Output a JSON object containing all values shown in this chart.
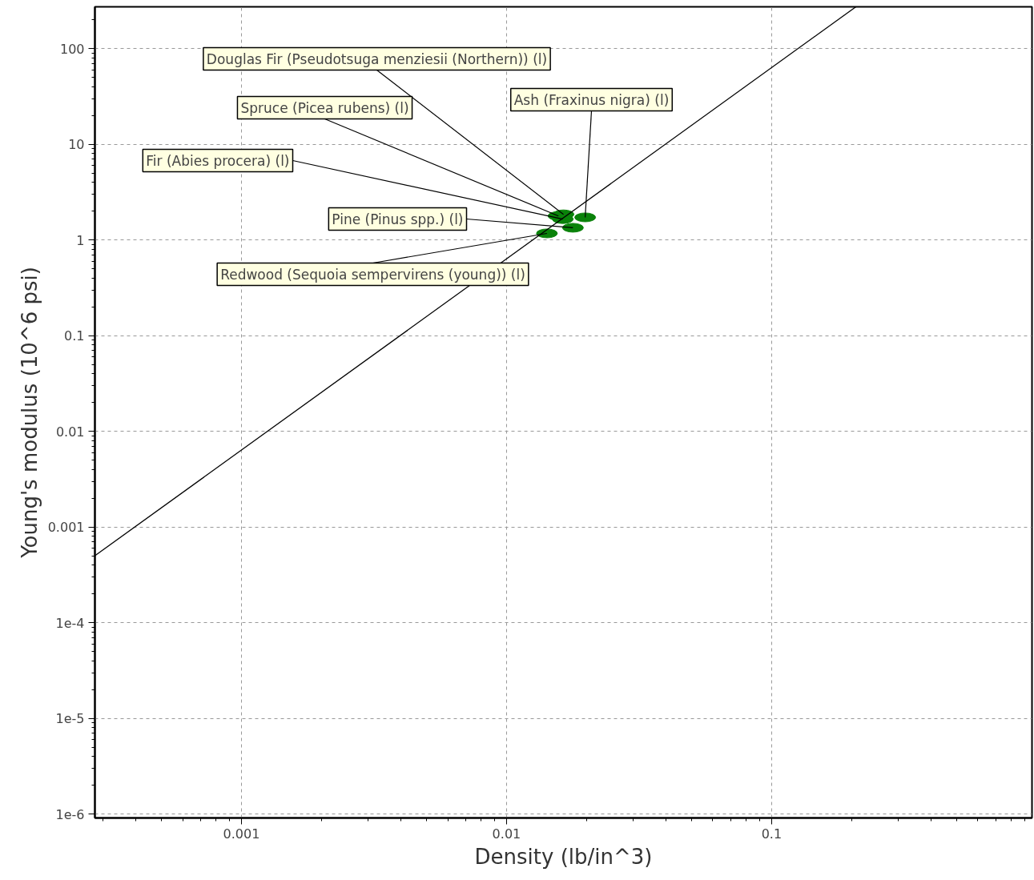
{
  "chart_data": {
    "type": "scatter",
    "xlabel": "Density (lb/in^3)",
    "ylabel": "Young's modulus (10^6 psi)",
    "log": "xy",
    "grid": true,
    "xlim": [
      0.00028,
      0.96
    ],
    "ylim": [
      9.1e-07,
      273
    ],
    "xticks": [
      0.001,
      0.01,
      0.1
    ],
    "yticks": [
      100,
      10,
      1,
      0.1,
      0.01,
      0.001,
      {
        "value": 0.0001,
        "label": "1e-4"
      },
      {
        "value": 1e-05,
        "label": "1e-5"
      },
      {
        "value": 1e-06,
        "label": "1e-6"
      }
    ],
    "series": [
      {
        "marker": "circle",
        "color": "#0a820a",
        "x": [
          0.0164,
          0.0157,
          0.0198,
          0.0163,
          0.0178,
          0.0142
        ],
        "values": [
          1.85,
          1.78,
          1.72,
          1.65,
          1.34,
          1.17
        ]
      },
      {
        "type": "line",
        "marker": "none",
        "color": "#000000",
        "x": [
          0.00028,
          0.208
        ],
        "values": [
          0.0005,
          273
        ]
      }
    ],
    "annotations": [
      {
        "text": "Douglas Fir (Pseudotsuga menziesii (Northern)) (l)",
        "x": 0.0164,
        "y": 1.85
      },
      {
        "text": "Spruce (Picea rubens) (l)",
        "x": 0.0157,
        "y": 1.78
      },
      {
        "text": "Ash (Fraxinus nigra) (l)",
        "x": 0.0198,
        "y": 1.72
      },
      {
        "text": "Fir (Abies procera) (l)",
        "x": 0.0163,
        "y": 1.65
      },
      {
        "text": "Pine (Pinus spp.) (l)",
        "x": 0.0178,
        "y": 1.34
      },
      {
        "text": "Redwood (Sequoia sempervirens (young)) (l)",
        "x": 0.0142,
        "y": 1.17
      }
    ]
  }
}
